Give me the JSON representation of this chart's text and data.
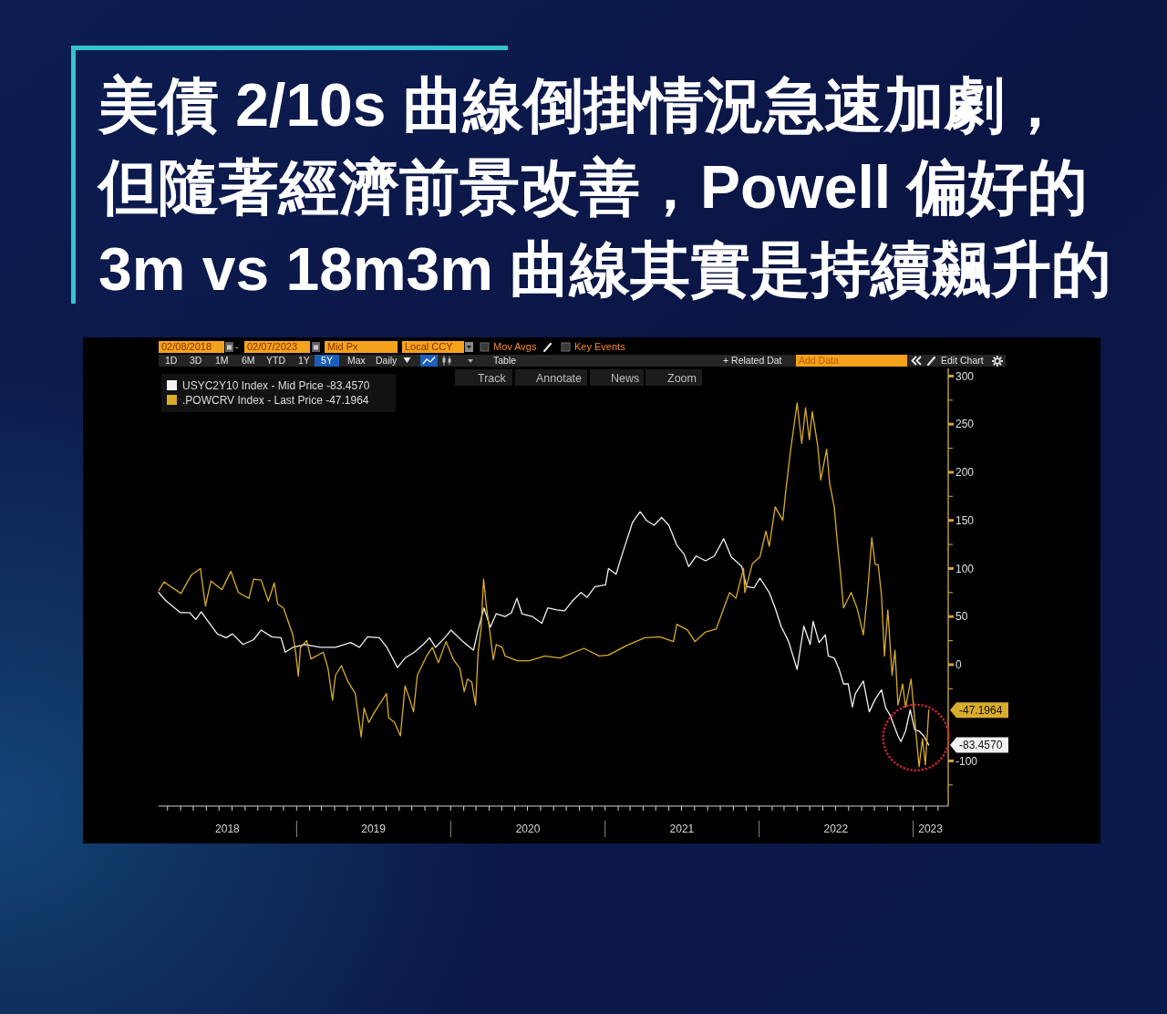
{
  "chart_data": {
    "type": "line",
    "title": "美債 2/10s 曲線倒掛情況急速加劇，但隨著經濟前景改善，Powell 偏好的3m vs 18m3m 曲線其實是持續飆升的",
    "annotations": [
      "02/08/2018",
      "-",
      "02/07/2023",
      "Mid Px",
      "Local CCY",
      "Mov Avgs",
      "Key Events",
      "1D",
      "3D",
      "1M",
      "6M",
      "YTD",
      "1Y",
      "5Y",
      "Max",
      "Daily",
      "Table",
      "+ Related Dat",
      "Add Data",
      "Edit Chart",
      "Track",
      "Annotate",
      "News",
      "Zoom",
      "-47.1964",
      "-83.4570"
    ],
    "legend": "top left",
    "xlim": [
      "2018-02-08",
      "2023-03-25"
    ],
    "xticks": [
      {
        "value": "2018-07-21",
        "label": "2018"
      },
      {
        "value": "2019-07-02",
        "label": "2019"
      },
      {
        "value": "2020-07-02",
        "label": "2020"
      },
      {
        "value": "2021-07-02",
        "label": "2021"
      },
      {
        "value": "2022-07-02",
        "label": "2022"
      },
      {
        "value": "2023-02-11",
        "label": "2023"
      },
      {
        "value": "2018-03-01",
        "label": null
      },
      {
        "value": "2018-04-01",
        "label": null
      },
      {
        "value": "2018-05-01",
        "label": null
      },
      {
        "value": "2018-06-01",
        "label": null
      },
      {
        "value": "2018-07-01",
        "label": null
      },
      {
        "value": "2018-08-01",
        "label": null
      },
      {
        "value": "2018-09-01",
        "label": null
      },
      {
        "value": "2018-10-01",
        "label": null
      },
      {
        "value": "2018-11-01",
        "label": null
      },
      {
        "value": "2018-12-01",
        "label": null
      },
      {
        "value": "2019-01-01",
        "label": null
      },
      {
        "value": "2019-02-01",
        "label": null
      },
      {
        "value": "2019-03-01",
        "label": null
      },
      {
        "value": "2019-04-01",
        "label": null
      },
      {
        "value": "2019-05-01",
        "label": null
      },
      {
        "value": "2019-06-01",
        "label": null
      },
      {
        "value": "2019-07-01",
        "label": null
      },
      {
        "value": "2019-08-01",
        "label": null
      },
      {
        "value": "2019-09-01",
        "label": null
      },
      {
        "value": "2019-10-01",
        "label": null
      },
      {
        "value": "2019-11-01",
        "label": null
      },
      {
        "value": "2019-12-01",
        "label": null
      },
      {
        "value": "2020-01-01",
        "label": null
      },
      {
        "value": "2020-02-01",
        "label": null
      },
      {
        "value": "2020-03-01",
        "label": null
      },
      {
        "value": "2020-04-01",
        "label": null
      },
      {
        "value": "2020-05-01",
        "label": null
      },
      {
        "value": "2020-06-01",
        "label": null
      },
      {
        "value": "2020-07-01",
        "label": null
      },
      {
        "value": "2020-08-01",
        "label": null
      },
      {
        "value": "2020-09-01",
        "label": null
      },
      {
        "value": "2020-10-01",
        "label": null
      },
      {
        "value": "2020-11-01",
        "label": null
      },
      {
        "value": "2020-12-01",
        "label": null
      },
      {
        "value": "2021-01-01",
        "label": null
      },
      {
        "value": "2021-02-01",
        "label": null
      },
      {
        "value": "2021-03-01",
        "label": null
      },
      {
        "value": "2021-04-01",
        "label": null
      },
      {
        "value": "2021-05-01",
        "label": null
      },
      {
        "value": "2021-06-01",
        "label": null
      },
      {
        "value": "2021-07-01",
        "label": null
      },
      {
        "value": "2021-08-01",
        "label": null
      },
      {
        "value": "2021-09-01",
        "label": null
      },
      {
        "value": "2021-10-01",
        "label": null
      },
      {
        "value": "2021-11-01",
        "label": null
      },
      {
        "value": "2021-12-01",
        "label": null
      },
      {
        "value": "2022-01-01",
        "label": null
      },
      {
        "value": "2022-02-01",
        "label": null
      },
      {
        "value": "2022-03-01",
        "label": null
      },
      {
        "value": "2022-04-01",
        "label": null
      },
      {
        "value": "2022-05-01",
        "label": null
      },
      {
        "value": "2022-06-01",
        "label": null
      },
      {
        "value": "2022-07-01",
        "label": null
      },
      {
        "value": "2022-08-01",
        "label": null
      },
      {
        "value": "2022-09-01",
        "label": null
      },
      {
        "value": "2022-10-01",
        "label": null
      },
      {
        "value": "2022-11-01",
        "label": null
      },
      {
        "value": "2022-12-01",
        "label": null
      },
      {
        "value": "2023-01-01",
        "label": null
      },
      {
        "value": "2023-02-01",
        "label": null
      },
      {
        "value": "2023-03-01",
        "label": null
      }
    ],
    "ylim": [
      -147,
      308
    ],
    "yticks": [
      {
        "value": -125,
        "label": null
      },
      -100,
      {
        "value": -25,
        "label": null
      },
      0,
      {
        "value": 25,
        "label": null
      },
      50,
      {
        "value": 75,
        "label": null
      },
      100,
      {
        "value": 125,
        "label": null
      },
      150,
      {
        "value": 175,
        "label": null
      },
      200,
      {
        "value": 225,
        "label": null
      },
      250,
      {
        "value": 275,
        "label": null
      },
      300
    ],
    "series": [
      {
        "name": "USYC2Y10 Index - Mid Price -83.4570",
        "color": "#f2f2f2",
        "x": [
          "2018-02-08",
          "2018-02-24",
          "2018-03-18",
          "2018-04-01",
          "2018-04-23",
          "2018-05-07",
          "2018-05-20",
          "2018-06-05",
          "2018-06-27",
          "2018-07-18",
          "2018-08-02",
          "2018-08-27",
          "2018-09-21",
          "2018-10-09",
          "2018-11-03",
          "2018-11-25",
          "2018-12-05",
          "2018-12-23",
          "2019-01-21",
          "2019-02-26",
          "2019-04-03",
          "2019-05-09",
          "2019-05-30",
          "2019-06-18",
          "2019-07-16",
          "2019-08-03",
          "2019-08-28",
          "2019-09-15",
          "2019-10-07",
          "2019-10-28",
          "2019-11-12",
          "2019-11-26",
          "2019-12-18",
          "2020-01-02",
          "2020-01-30",
          "2020-02-24",
          "2020-03-06",
          "2020-03-20",
          "2020-04-04",
          "2020-04-18",
          "2020-05-09",
          "2020-05-24",
          "2020-06-06",
          "2020-06-18",
          "2020-07-13",
          "2020-08-04",
          "2020-08-18",
          "2020-09-09",
          "2020-09-27",
          "2020-10-15",
          "2020-11-05",
          "2020-11-19",
          "2020-12-08",
          "2021-01-02",
          "2021-01-09",
          "2021-01-27",
          "2021-02-07",
          "2021-02-21",
          "2021-03-07",
          "2021-03-25",
          "2021-04-09",
          "2021-04-27",
          "2021-05-15",
          "2021-06-01",
          "2021-06-20",
          "2021-07-07",
          "2021-07-18",
          "2021-08-05",
          "2021-08-27",
          "2021-09-17",
          "2021-10-09",
          "2021-10-27",
          "2021-11-21",
          "2021-12-02",
          "2021-12-20",
          "2022-01-03",
          "2022-01-25",
          "2022-02-08",
          "2022-02-22",
          "2022-03-12",
          "2022-04-01",
          "2022-04-17",
          "2022-05-02",
          "2022-05-09",
          "2022-05-23",
          "2022-06-07",
          "2022-06-14",
          "2022-06-28",
          "2022-07-09",
          "2022-07-20",
          "2022-07-31",
          "2022-08-10",
          "2022-08-17",
          "2022-09-05",
          "2022-09-19",
          "2022-10-03",
          "2022-10-18",
          "2022-10-28",
          "2022-11-08",
          "2022-11-19",
          "2022-11-26",
          "2022-12-03",
          "2022-12-14",
          "2022-12-25",
          "2023-01-05",
          "2023-01-15",
          "2023-01-26",
          "2023-02-07"
        ],
        "values": [
          75,
          67,
          59,
          54,
          54,
          47,
          55,
          45,
          32,
          28,
          32,
          21,
          26,
          36,
          29,
          28,
          13,
          18,
          21,
          18,
          18,
          23,
          18,
          29,
          28,
          18,
          -3,
          7,
          13,
          21,
          28,
          18,
          28,
          36,
          24,
          15,
          36,
          59,
          39,
          53,
          50,
          54,
          69,
          53,
          50,
          43,
          59,
          57,
          56,
          66,
          75,
          70,
          81,
          83,
          100,
          94,
          110,
          129,
          148,
          159,
          150,
          145,
          153,
          145,
          124,
          115,
          102,
          113,
          108,
          113,
          131,
          112,
          102,
          81,
          80,
          90,
          75,
          59,
          40,
          24,
          -5,
          40,
          21,
          45,
          23,
          31,
          9,
          7,
          -4,
          -20,
          -20,
          -44,
          -30,
          -17,
          -49,
          -36,
          -26,
          -45,
          -53,
          -66,
          -74,
          -80,
          -69,
          -47,
          -68,
          -69,
          -74,
          -83.457
        ]
      },
      {
        "name": ".POWCRV Index - Last Price -47.1964",
        "color": "#d9ac2c",
        "x": [
          "2018-02-08",
          "2018-02-21",
          "2018-04-02",
          "2018-04-26",
          "2018-05-18",
          "2018-05-30",
          "2018-06-12",
          "2018-07-08",
          "2018-07-29",
          "2018-08-16",
          "2018-09-10",
          "2018-09-21",
          "2018-10-09",
          "2018-10-26",
          "2018-11-09",
          "2018-11-17",
          "2018-12-01",
          "2018-12-23",
          "2018-12-30",
          "2019-01-05",
          "2019-01-10",
          "2019-01-25",
          "2019-02-04",
          "2019-03-05",
          "2019-03-16",
          "2019-03-27",
          "2019-04-03",
          "2019-04-17",
          "2019-05-02",
          "2019-05-20",
          "2019-06-03",
          "2019-06-10",
          "2019-06-21",
          "2019-07-05",
          "2019-08-02",
          "2019-08-07",
          "2019-08-21",
          "2019-09-04",
          "2019-09-15",
          "2019-09-26",
          "2019-10-05",
          "2019-10-14",
          "2019-11-05",
          "2019-11-19",
          "2019-12-03",
          "2019-12-21",
          "2020-01-08",
          "2020-01-23",
          "2020-02-02",
          "2020-02-10",
          "2020-02-20",
          "2020-02-29",
          "2020-03-06",
          "2020-03-13",
          "2020-03-19",
          "2020-03-26",
          "2020-04-04",
          "2020-04-11",
          "2020-04-18",
          "2020-05-02",
          "2020-05-09",
          "2020-06-07",
          "2020-07-06",
          "2020-08-11",
          "2020-09-16",
          "2020-11-12",
          "2020-12-18",
          "2021-01-09",
          "2021-02-21",
          "2021-04-05",
          "2021-05-11",
          "2021-06-12",
          "2021-06-20",
          "2021-07-15",
          "2021-08-02",
          "2021-08-27",
          "2021-09-21",
          "2021-10-02",
          "2021-10-23",
          "2021-11-07",
          "2021-11-25",
          "2021-11-28",
          "2021-12-16",
          "2022-01-03",
          "2022-01-17",
          "2022-01-25",
          "2022-02-08",
          "2022-02-26",
          "2022-03-05",
          "2022-03-16",
          "2022-04-01",
          "2022-04-12",
          "2022-04-21",
          "2022-04-30",
          "2022-05-07",
          "2022-05-20",
          "2022-05-27",
          "2022-06-10",
          "2022-06-17",
          "2022-06-28",
          "2022-07-05",
          "2022-07-13",
          "2022-07-20",
          "2022-08-07",
          "2022-08-21",
          "2022-09-05",
          "2022-09-15",
          "2022-09-25",
          "2022-10-03",
          "2022-10-10",
          "2022-10-18",
          "2022-10-25",
          "2022-11-02",
          "2022-11-12",
          "2022-11-19",
          "2022-11-26",
          "2022-12-07",
          "2022-12-14",
          "2022-12-27",
          "2023-01-05",
          "2023-01-15",
          "2023-01-23",
          "2023-01-30",
          "2023-02-07"
        ],
        "values": [
          77,
          86,
          74,
          93,
          100,
          61,
          87,
          78,
          97,
          75,
          69,
          89,
          88,
          66,
          85,
          63,
          59,
          31,
          12,
          -12,
          18,
          25,
          6,
          13,
          -3,
          -37,
          -11,
          -1,
          -17,
          -30,
          -75,
          -45,
          -60,
          -49,
          -30,
          -55,
          -60,
          -74,
          -22,
          -36,
          -49,
          -11,
          9,
          18,
          2,
          24,
          5,
          -4,
          -28,
          -15,
          -18,
          -42,
          12,
          37,
          89,
          59,
          31,
          5,
          21,
          18,
          9,
          4,
          4,
          9,
          7,
          17,
          9,
          10,
          20,
          28,
          29,
          24,
          42,
          36,
          24,
          34,
          37,
          50,
          75,
          69,
          100,
          75,
          105,
          112,
          139,
          123,
          164,
          150,
          180,
          221,
          272,
          230,
          267,
          234,
          263,
          227,
          192,
          224,
          189,
          164,
          129,
          94,
          59,
          75,
          59,
          31,
          75,
          132,
          104,
          104,
          72,
          9,
          57,
          -11,
          15,
          -42,
          -20,
          -44,
          -15,
          -58,
          -106,
          -77,
          -104,
          -47.1964
        ]
      }
    ]
  }
}
